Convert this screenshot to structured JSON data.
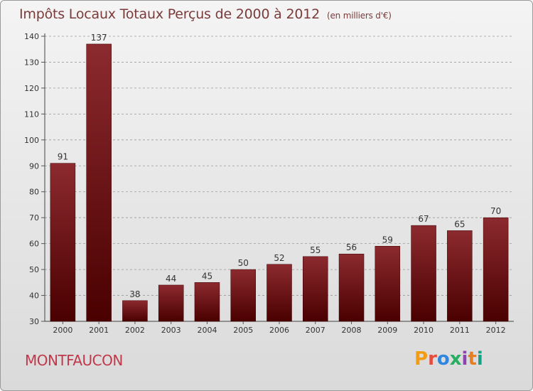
{
  "header": {
    "title": "Impôts Locaux Totaux Perçus de 2000 à 2012",
    "unit": "(en milliers d'€)"
  },
  "footer": {
    "place": "MONTFAUCON",
    "logo_letters": [
      "P",
      "r",
      "o",
      "x",
      "i",
      "t",
      "i"
    ],
    "logo_colors": [
      "#f39c12",
      "#e74c3c",
      "#2e86de",
      "#27ae60",
      "#8e44ad",
      "#e67e22",
      "#16a085"
    ]
  },
  "colors": {
    "bar_top": "#8c2a2f",
    "bar_bottom": "#4a0000",
    "grid": "#9a9a9a",
    "text": "#333333"
  },
  "chart_data": {
    "type": "bar",
    "title": "Impôts Locaux Totaux Perçus de 2000 à 2012",
    "xlabel": "",
    "ylabel": "",
    "categories": [
      "2000",
      "2001",
      "2002",
      "2003",
      "2004",
      "2005",
      "2006",
      "2007",
      "2008",
      "2009",
      "2010",
      "2011",
      "2012"
    ],
    "values": [
      91,
      137,
      38,
      44,
      45,
      50,
      52,
      55,
      56,
      59,
      67,
      65,
      70
    ],
    "ylim": [
      30,
      140
    ],
    "yticks": [
      30,
      40,
      50,
      60,
      70,
      80,
      90,
      100,
      110,
      120,
      130,
      140
    ],
    "grid": true
  }
}
